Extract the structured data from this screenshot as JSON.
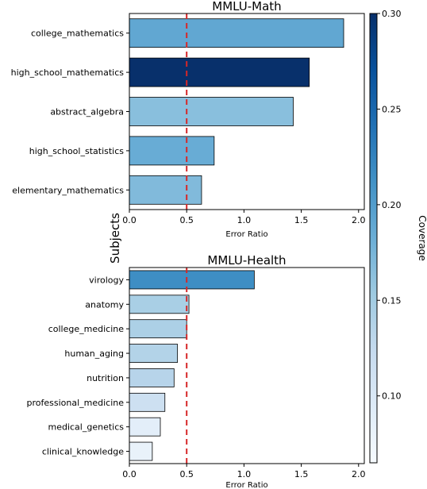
{
  "chart_data": [
    {
      "type": "bar",
      "orientation": "horizontal",
      "title": "MMLU-Math",
      "xlabel": "Error Ratio",
      "ylabel": "Subjects",
      "xlim": [
        0,
        2.05
      ],
      "xticks": [
        "0.0",
        "0.5",
        "1.0",
        "1.5",
        "2.0"
      ],
      "reference_line": {
        "x": 0.5,
        "color": "#d62728",
        "style": "dashed"
      },
      "categories": [
        "college_mathematics",
        "high_school_mathematics",
        "abstract_algebra",
        "high_school_statistics",
        "elementary_mathematics"
      ],
      "values": [
        1.87,
        1.57,
        1.43,
        0.74,
        0.63
      ],
      "coverage": [
        0.19,
        0.3,
        0.165,
        0.185,
        0.17
      ]
    },
    {
      "type": "bar",
      "orientation": "horizontal",
      "title": "MMLU-Health",
      "xlabel": "Error Ratio",
      "ylabel": "",
      "xlim": [
        0,
        2.05
      ],
      "xticks": [
        "0.0",
        "0.5",
        "1.0",
        "1.5",
        "2.0"
      ],
      "reference_line": {
        "x": 0.5,
        "color": "#d62728",
        "style": "dashed"
      },
      "categories": [
        "virology",
        "anatomy",
        "college_medicine",
        "human_aging",
        "nutrition",
        "professional_medicine",
        "medical_genetics",
        "clinical_knowledge"
      ],
      "values": [
        1.09,
        0.52,
        0.5,
        0.42,
        0.39,
        0.31,
        0.27,
        0.2
      ],
      "coverage": [
        0.215,
        0.145,
        0.143,
        0.138,
        0.135,
        0.115,
        0.088,
        0.082
      ]
    }
  ],
  "colorbar": {
    "label": "Coverage",
    "range": [
      0.065,
      0.3
    ],
    "ticks": [
      "0.10",
      "0.15",
      "0.20",
      "0.25",
      "0.30"
    ],
    "tick_values": [
      0.1,
      0.15,
      0.2,
      0.25,
      0.3
    ],
    "colormap": "Blues"
  }
}
